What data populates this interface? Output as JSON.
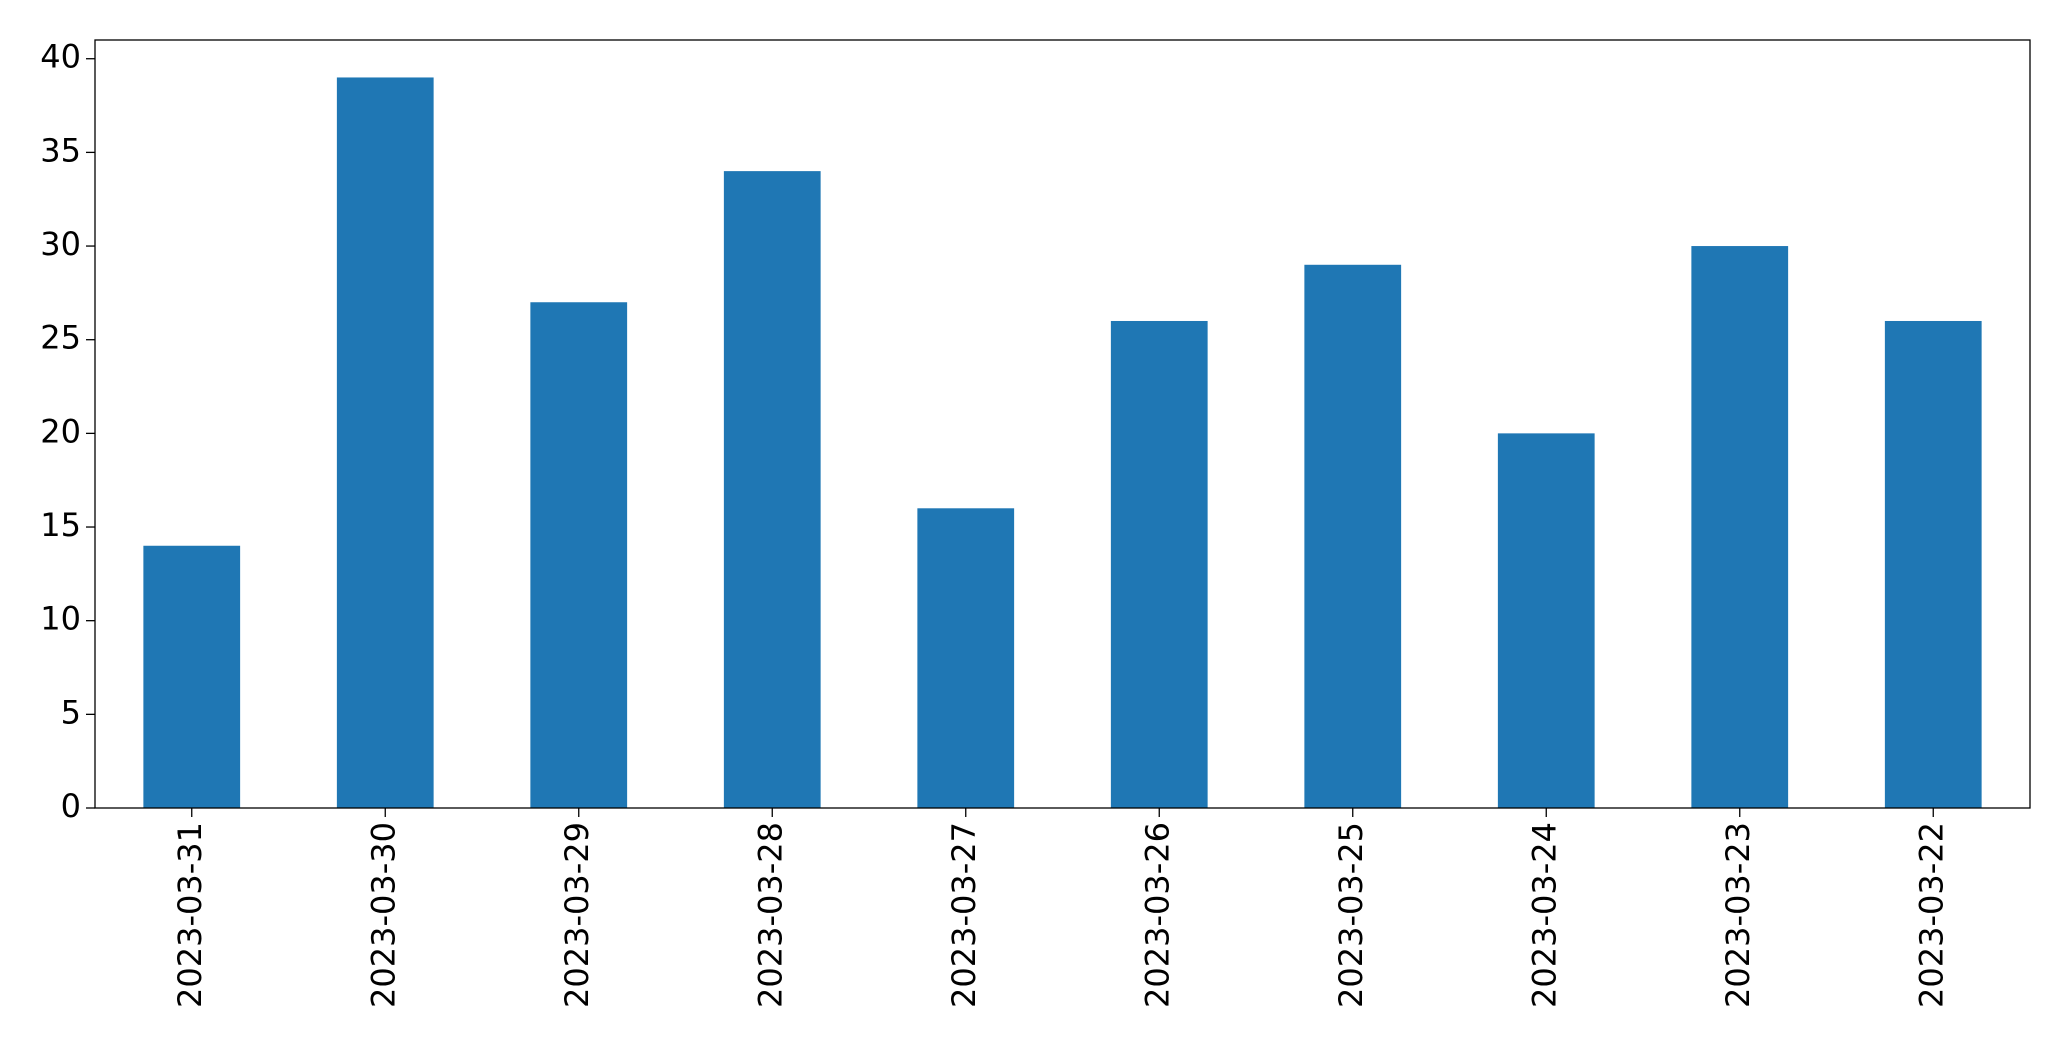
{
  "chart_data": {
    "type": "bar",
    "categories": [
      "2023-03-31",
      "2023-03-30",
      "2023-03-29",
      "2023-03-28",
      "2023-03-27",
      "2023-03-26",
      "2023-03-25",
      "2023-03-24",
      "2023-03-23",
      "2023-03-22"
    ],
    "values": [
      14,
      39,
      27,
      34,
      16,
      26,
      29,
      20,
      30,
      26
    ],
    "color": "#1f77b4",
    "ylim": [
      0,
      41
    ],
    "yticks": [
      0,
      5,
      10,
      15,
      20,
      25,
      30,
      35,
      40
    ],
    "grid": false
  }
}
